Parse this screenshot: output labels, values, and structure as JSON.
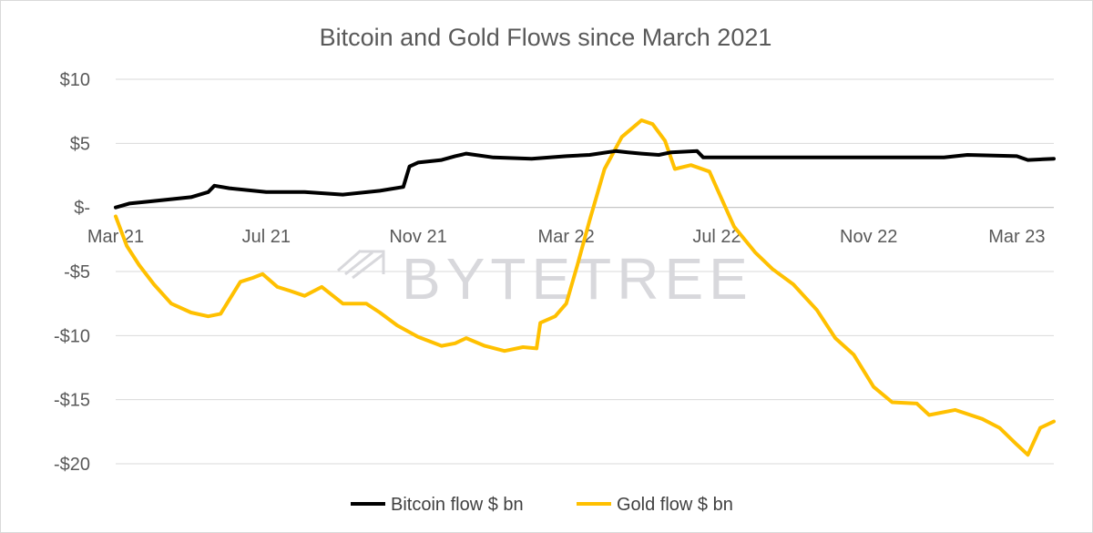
{
  "chart_data": {
    "type": "line",
    "title": "Bitcoin and Gold Flows since March 2021",
    "xlabel": "",
    "ylabel": "",
    "x_axis": {
      "tick_labels": [
        "Mar 21",
        "Jul 21",
        "Nov 21",
        "Mar 22",
        "Jul 22",
        "Nov 22",
        "Mar 23"
      ],
      "tick_dates": [
        "2021-03-01",
        "2021-07-01",
        "2021-11-01",
        "2022-03-01",
        "2022-07-01",
        "2022-11-01",
        "2023-03-01"
      ],
      "range": [
        "2021-03-01",
        "2023-03-31"
      ]
    },
    "y_axis": {
      "tick_values": [
        10,
        5,
        0,
        -5,
        -10,
        -15,
        -20
      ],
      "tick_labels": [
        "$10",
        "$5",
        "$-",
        "-$5",
        "-$10",
        "-$15",
        "-$20"
      ],
      "ylim": [
        -20,
        10
      ]
    },
    "grid": "horizontal",
    "legend_position": "bottom",
    "series": [
      {
        "name": "Bitcoin flow $ bn",
        "color": "#000000",
        "points": [
          [
            "2021-03-01",
            0.0
          ],
          [
            "2021-03-12",
            0.3
          ],
          [
            "2021-04-01",
            0.5
          ],
          [
            "2021-05-01",
            0.8
          ],
          [
            "2021-05-15",
            1.2
          ],
          [
            "2021-05-20",
            1.7
          ],
          [
            "2021-06-01",
            1.5
          ],
          [
            "2021-07-01",
            1.2
          ],
          [
            "2021-08-01",
            1.2
          ],
          [
            "2021-09-01",
            1.0
          ],
          [
            "2021-10-01",
            1.3
          ],
          [
            "2021-10-20",
            1.6
          ],
          [
            "2021-10-25",
            3.2
          ],
          [
            "2021-11-01",
            3.5
          ],
          [
            "2021-11-20",
            3.7
          ],
          [
            "2021-12-01",
            4.0
          ],
          [
            "2021-12-10",
            4.2
          ],
          [
            "2022-01-01",
            3.9
          ],
          [
            "2022-02-01",
            3.8
          ],
          [
            "2022-03-01",
            4.0
          ],
          [
            "2022-03-20",
            4.1
          ],
          [
            "2022-04-10",
            4.4
          ],
          [
            "2022-04-20",
            4.3
          ],
          [
            "2022-05-01",
            4.2
          ],
          [
            "2022-05-15",
            4.1
          ],
          [
            "2022-05-25",
            4.3
          ],
          [
            "2022-06-15",
            4.4
          ],
          [
            "2022-06-20",
            3.9
          ],
          [
            "2022-07-01",
            3.9
          ],
          [
            "2022-09-01",
            3.9
          ],
          [
            "2022-11-01",
            3.9
          ],
          [
            "2023-01-01",
            3.9
          ],
          [
            "2023-01-20",
            4.1
          ],
          [
            "2023-03-01",
            4.0
          ],
          [
            "2023-03-10",
            3.7
          ],
          [
            "2023-03-31",
            3.8
          ]
        ]
      },
      {
        "name": "Gold flow $ bn",
        "color": "#FFC000",
        "points": [
          [
            "2021-03-01",
            -0.7
          ],
          [
            "2021-03-10",
            -3.0
          ],
          [
            "2021-03-20",
            -4.5
          ],
          [
            "2021-04-01",
            -6.0
          ],
          [
            "2021-04-15",
            -7.5
          ],
          [
            "2021-05-01",
            -8.2
          ],
          [
            "2021-05-15",
            -8.5
          ],
          [
            "2021-05-25",
            -8.3
          ],
          [
            "2021-06-10",
            -5.8
          ],
          [
            "2021-06-20",
            -5.5
          ],
          [
            "2021-06-28",
            -5.2
          ],
          [
            "2021-07-10",
            -6.2
          ],
          [
            "2021-07-20",
            -6.5
          ],
          [
            "2021-08-01",
            -6.9
          ],
          [
            "2021-08-15",
            -6.2
          ],
          [
            "2021-09-01",
            -7.5
          ],
          [
            "2021-09-20",
            -7.5
          ],
          [
            "2021-10-01",
            -8.2
          ],
          [
            "2021-10-15",
            -9.2
          ],
          [
            "2021-11-01",
            -10.1
          ],
          [
            "2021-11-20",
            -10.8
          ],
          [
            "2021-12-01",
            -10.6
          ],
          [
            "2021-12-10",
            -10.2
          ],
          [
            "2021-12-25",
            -10.8
          ],
          [
            "2022-01-10",
            -11.2
          ],
          [
            "2022-01-25",
            -10.9
          ],
          [
            "2022-02-05",
            -11.0
          ],
          [
            "2022-02-08",
            -9.0
          ],
          [
            "2022-02-20",
            -8.5
          ],
          [
            "2022-03-01",
            -7.5
          ],
          [
            "2022-03-10",
            -4.5
          ],
          [
            "2022-03-20",
            -1.0
          ],
          [
            "2022-04-01",
            3.0
          ],
          [
            "2022-04-15",
            5.5
          ],
          [
            "2022-05-01",
            6.8
          ],
          [
            "2022-05-10",
            6.5
          ],
          [
            "2022-05-20",
            5.2
          ],
          [
            "2022-05-28",
            3.0
          ],
          [
            "2022-06-10",
            3.3
          ],
          [
            "2022-06-25",
            2.8
          ],
          [
            "2022-07-01",
            1.5
          ],
          [
            "2022-07-15",
            -1.5
          ],
          [
            "2022-08-01",
            -3.5
          ],
          [
            "2022-08-15",
            -4.8
          ],
          [
            "2022-09-01",
            -6.0
          ],
          [
            "2022-09-20",
            -8.0
          ],
          [
            "2022-10-05",
            -10.2
          ],
          [
            "2022-10-20",
            -11.5
          ],
          [
            "2022-11-05",
            -14.0
          ],
          [
            "2022-11-20",
            -15.2
          ],
          [
            "2022-12-10",
            -15.3
          ],
          [
            "2022-12-20",
            -16.2
          ],
          [
            "2023-01-10",
            -15.8
          ],
          [
            "2023-02-01",
            -16.5
          ],
          [
            "2023-02-15",
            -17.2
          ],
          [
            "2023-03-01",
            -18.5
          ],
          [
            "2023-03-10",
            -19.3
          ],
          [
            "2023-03-20",
            -17.2
          ],
          [
            "2023-03-31",
            -16.7
          ]
        ]
      }
    ]
  },
  "watermark": {
    "text": "BYTETREE"
  }
}
